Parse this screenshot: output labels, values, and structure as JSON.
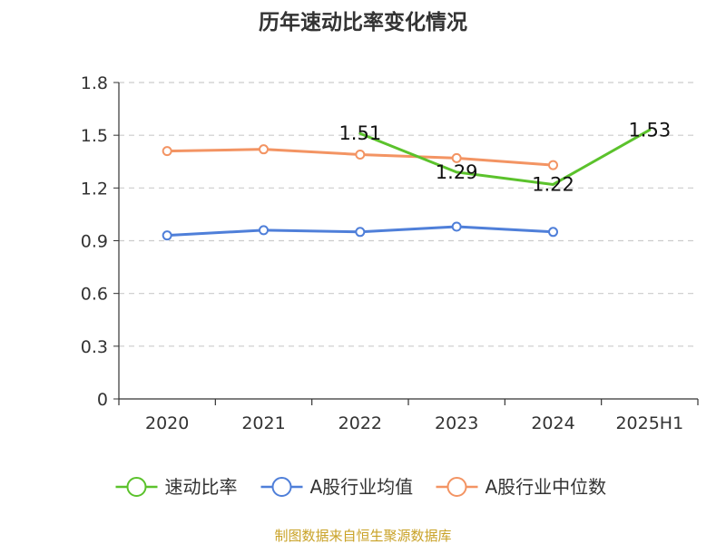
{
  "chart_data": {
    "type": "line",
    "title": "历年速动比率变化情况",
    "categories": [
      "2020",
      "2021",
      "2022",
      "2023",
      "2024",
      "2025H1"
    ],
    "ylim": [
      0,
      1.8
    ],
    "yticks": [
      "0",
      "0.3",
      "0.6",
      "0.9",
      "1.2",
      "1.5",
      "1.8"
    ],
    "ytick_values": [
      0,
      0.3,
      0.6,
      0.9,
      1.2,
      1.5,
      1.8
    ],
    "grid": true,
    "legend_position": "bottom",
    "series": [
      {
        "name": "速动比率",
        "color": "#5bc22c",
        "values": [
          null,
          null,
          1.51,
          1.29,
          1.22,
          1.53
        ],
        "labels": [
          "",
          "",
          "1.51",
          "1.29",
          "1.22",
          "1.53"
        ],
        "show_markers": false
      },
      {
        "name": "A股行业均值",
        "color": "#4f7fd9",
        "values": [
          0.93,
          0.96,
          0.95,
          0.98,
          0.95,
          null
        ],
        "labels": [
          "",
          "",
          "",
          "",
          "",
          ""
        ],
        "show_markers": true
      },
      {
        "name": "A股行业中位数",
        "color": "#f39463",
        "values": [
          1.41,
          1.42,
          1.39,
          1.37,
          1.33,
          null
        ],
        "labels": [
          "",
          "",
          "",
          "",
          "",
          ""
        ],
        "show_markers": true
      }
    ],
    "source": "制图数据来自恒生聚源数据库"
  }
}
